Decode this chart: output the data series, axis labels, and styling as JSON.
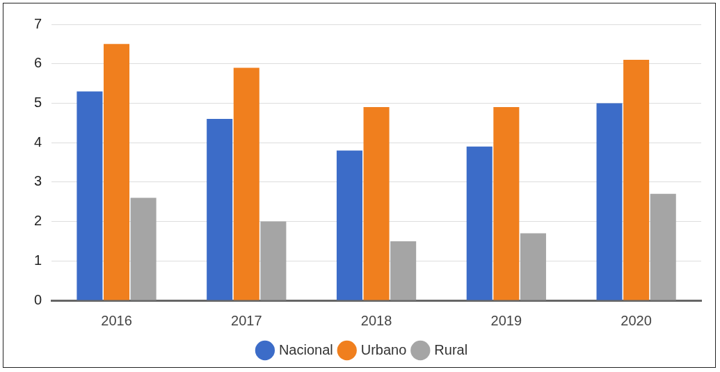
{
  "chart_data": {
    "type": "bar",
    "categories": [
      "2016",
      "2017",
      "2018",
      "2019",
      "2020"
    ],
    "series": [
      {
        "name": "Nacional",
        "color": "#3c6cc8",
        "values": [
          5.3,
          4.6,
          3.8,
          3.9,
          5.0
        ]
      },
      {
        "name": "Urbano",
        "color": "#f07f1e",
        "values": [
          6.5,
          5.9,
          4.9,
          4.9,
          6.1
        ]
      },
      {
        "name": "Rural",
        "color": "#a5a5a5",
        "values": [
          2.6,
          2.0,
          1.5,
          1.7,
          2.7
        ]
      }
    ],
    "ylim": [
      0,
      7
    ],
    "yticks": [
      0,
      1,
      2,
      3,
      4,
      5,
      6,
      7
    ],
    "grid": "y",
    "legend": "bottom"
  }
}
